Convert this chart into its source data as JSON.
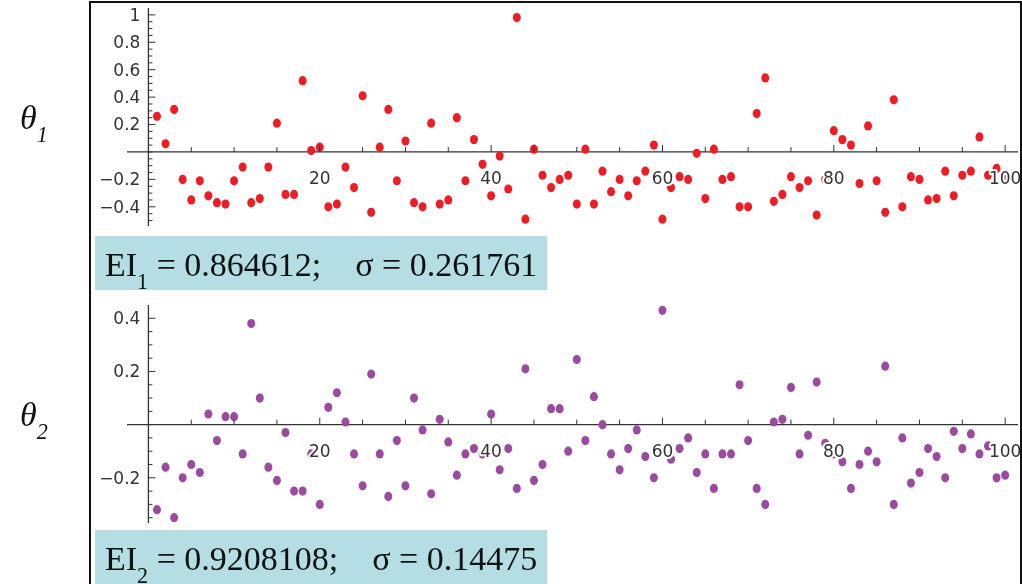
{
  "chart_data": [
    {
      "type": "scatter",
      "ylabel": "θ$_{1}$",
      "annotations": [
        "EI$_{1}$ = 0.864612;    σ = 0.261761"
      ],
      "marker": "circle",
      "grid": false,
      "xlim": [
        -2.5,
        101.5
      ],
      "ylim": [
        -0.54,
        1.05
      ],
      "xticks": [
        {
          "value": 5,
          "label": null
        },
        {
          "value": 10,
          "label": null
        },
        {
          "value": 15,
          "label": null
        },
        20,
        {
          "value": 25,
          "label": null
        },
        {
          "value": 30,
          "label": null
        },
        {
          "value": 35,
          "label": null
        },
        40,
        {
          "value": 45,
          "label": null
        },
        {
          "value": 50,
          "label": null
        },
        {
          "value": 55,
          "label": null
        },
        60,
        {
          "value": 65,
          "label": null
        },
        {
          "value": 70,
          "label": null
        },
        {
          "value": 75,
          "label": null
        },
        80,
        {
          "value": 85,
          "label": null
        },
        {
          "value": 90,
          "label": null
        },
        {
          "value": 95,
          "label": null
        },
        100
      ],
      "yticks": [
        {
          "value": -0.5,
          "label": null
        },
        {
          "value": -0.45,
          "label": null
        },
        -0.4,
        {
          "value": -0.35,
          "label": null
        },
        {
          "value": -0.3,
          "label": null
        },
        {
          "value": -0.25,
          "label": null
        },
        -0.2,
        {
          "value": -0.15,
          "label": null
        },
        {
          "value": -0.1,
          "label": null
        },
        {
          "value": -0.05,
          "label": null
        },
        {
          "value": 0,
          "label": null
        },
        {
          "value": 0.05,
          "label": null
        },
        {
          "value": 0.1,
          "label": null
        },
        {
          "value": 0.15,
          "label": null
        },
        0.2,
        {
          "value": 0.25,
          "label": null
        },
        {
          "value": 0.3,
          "label": null
        },
        {
          "value": 0.35,
          "label": null
        },
        0.4,
        {
          "value": 0.45,
          "label": null
        },
        {
          "value": 0.5,
          "label": null
        },
        {
          "value": 0.55,
          "label": null
        },
        0.6,
        {
          "value": 0.65,
          "label": null
        },
        {
          "value": 0.7,
          "label": null
        },
        {
          "value": 0.75,
          "label": null
        },
        0.8,
        {
          "value": 0.85,
          "label": null
        },
        {
          "value": 0.9,
          "label": null
        },
        {
          "value": 0.95,
          "label": null
        },
        1
      ],
      "series": [
        {
          "color": "#ee1c25",
          "x": [
            1,
            2,
            3,
            4,
            5,
            6,
            7,
            8,
            9,
            10,
            11,
            12,
            13,
            14,
            15,
            16,
            17,
            18,
            19,
            20,
            21,
            22,
            23,
            24,
            25,
            26,
            27,
            28,
            29,
            30,
            31,
            32,
            33,
            34,
            35,
            36,
            37,
            38,
            39,
            40,
            41,
            42,
            43,
            44,
            45,
            46,
            47,
            48,
            49,
            50,
            51,
            52,
            53,
            54,
            55,
            56,
            57,
            58,
            59,
            60,
            61,
            62,
            63,
            64,
            65,
            66,
            67,
            68,
            69,
            70,
            71,
            72,
            73,
            74,
            75,
            76,
            77,
            78,
            79,
            80,
            81,
            82,
            83,
            84,
            85,
            86,
            87,
            88,
            89,
            90,
            91,
            92,
            93,
            94,
            95,
            96,
            97,
            98,
            99,
            100
          ],
          "values": [
            0.26,
            0.06,
            0.31,
            -0.2,
            -0.35,
            -0.21,
            -0.32,
            -0.37,
            -0.38,
            -0.21,
            -0.11,
            -0.37,
            -0.34,
            -0.11,
            0.21,
            -0.31,
            -0.31,
            0.52,
            0.01,
            0.035,
            -0.4,
            -0.38,
            -0.11,
            -0.26,
            0.41,
            -0.44,
            0.035,
            0.31,
            -0.21,
            0.08,
            -0.37,
            -0.4,
            0.21,
            -0.38,
            -0.35,
            0.25,
            -0.21,
            0.09,
            -0.09,
            -0.32,
            -0.03,
            -0.27,
            0.98,
            -0.49,
            0.02,
            -0.17,
            -0.26,
            -0.2,
            -0.17,
            -0.38,
            0.02,
            -0.38,
            -0.14,
            -0.29,
            -0.2,
            -0.32,
            -0.21,
            -0.14,
            0.05,
            -0.49,
            -0.26,
            -0.18,
            -0.2,
            -0.01,
            -0.34,
            0.02,
            -0.2,
            -0.18,
            -0.4,
            -0.4,
            0.28,
            0.54,
            -0.36,
            -0.31,
            -0.18,
            -0.26,
            -0.21,
            -0.46,
            -0.2,
            0.155,
            0.09,
            0.05,
            -0.23,
            0.19,
            -0.21,
            -0.44,
            0.38,
            -0.4,
            -0.18,
            -0.2,
            -0.35,
            -0.34,
            -0.14,
            -0.32,
            -0.17,
            -0.14,
            0.11,
            -0.17,
            -0.12,
            -0.18
          ]
        }
      ]
    },
    {
      "type": "scatter",
      "ylabel": "θ$_{2}$",
      "annotations": [
        "EI$_{2}$ = 0.9208108;    σ = 0.14475"
      ],
      "marker": "circle",
      "grid": false,
      "xlim": [
        -2.5,
        101.5
      ],
      "ylim": [
        -0.37,
        0.45
      ],
      "xticks": [
        {
          "value": 5,
          "label": null
        },
        {
          "value": 10,
          "label": null
        },
        {
          "value": 15,
          "label": null
        },
        20,
        {
          "value": 25,
          "label": null
        },
        {
          "value": 30,
          "label": null
        },
        {
          "value": 35,
          "label": null
        },
        40,
        {
          "value": 45,
          "label": null
        },
        {
          "value": 50,
          "label": null
        },
        {
          "value": 55,
          "label": null
        },
        60,
        {
          "value": 65,
          "label": null
        },
        {
          "value": 70,
          "label": null
        },
        {
          "value": 75,
          "label": null
        },
        80,
        {
          "value": 85,
          "label": null
        },
        {
          "value": 90,
          "label": null
        },
        {
          "value": 95,
          "label": null
        },
        100
      ],
      "yticks": [
        {
          "value": -0.35,
          "label": null
        },
        {
          "value": -0.3,
          "label": null
        },
        {
          "value": -0.25,
          "label": null
        },
        -0.2,
        {
          "value": -0.15,
          "label": null
        },
        {
          "value": -0.1,
          "label": null
        },
        {
          "value": -0.05,
          "label": null
        },
        {
          "value": 0,
          "label": null
        },
        {
          "value": 0.05,
          "label": null
        },
        {
          "value": 0.1,
          "label": null
        },
        {
          "value": 0.15,
          "label": null
        },
        0.2,
        {
          "value": 0.25,
          "label": null
        },
        {
          "value": 0.3,
          "label": null
        },
        {
          "value": 0.35,
          "label": null
        },
        0.4
      ],
      "series": [
        {
          "color": "#9b4a9f",
          "x": [
            1,
            2,
            3,
            4,
            5,
            6,
            7,
            8,
            9,
            10,
            11,
            12,
            13,
            14,
            15,
            16,
            17,
            18,
            19,
            20,
            21,
            22,
            23,
            24,
            25,
            26,
            27,
            28,
            29,
            30,
            31,
            32,
            33,
            34,
            35,
            36,
            37,
            38,
            39,
            40,
            41,
            42,
            43,
            44,
            45,
            46,
            47,
            48,
            49,
            50,
            51,
            52,
            53,
            54,
            55,
            56,
            57,
            58,
            59,
            60,
            61,
            62,
            63,
            64,
            65,
            66,
            67,
            68,
            69,
            70,
            71,
            72,
            73,
            74,
            75,
            76,
            77,
            78,
            79,
            80,
            81,
            82,
            83,
            84,
            85,
            86,
            87,
            88,
            89,
            90,
            91,
            92,
            93,
            94,
            95,
            96,
            97,
            98,
            99,
            100
          ],
          "values": [
            -0.32,
            -0.16,
            -0.35,
            -0.2,
            -0.15,
            -0.18,
            0.04,
            -0.06,
            0.03,
            0.03,
            -0.11,
            0.38,
            0.1,
            -0.16,
            -0.21,
            -0.03,
            -0.25,
            -0.25,
            -0.11,
            -0.3,
            0.065,
            0.12,
            0.01,
            -0.11,
            -0.23,
            0.19,
            -0.11,
            -0.27,
            -0.06,
            -0.23,
            0.1,
            -0.02,
            -0.26,
            0.02,
            -0.065,
            -0.19,
            -0.11,
            -0.09,
            -0.11,
            0.04,
            -0.17,
            -0.09,
            -0.24,
            0.21,
            -0.21,
            -0.15,
            0.06,
            0.06,
            -0.1,
            0.245,
            -0.06,
            0.105,
            0,
            -0.11,
            -0.17,
            -0.09,
            -0.02,
            -0.12,
            -0.2,
            0.43,
            -0.13,
            -0.09,
            -0.05,
            -0.18,
            -0.11,
            -0.24,
            -0.11,
            -0.11,
            0.15,
            -0.06,
            -0.24,
            -0.3,
            0.01,
            0.02,
            0.14,
            -0.11,
            -0.04,
            0.16,
            -0.07,
            -0.11,
            -0.14,
            -0.24,
            -0.15,
            -0.1,
            -0.14,
            0.22,
            -0.3,
            -0.05,
            -0.22,
            -0.18,
            -0.09,
            -0.12,
            -0.2,
            -0.025,
            -0.09,
            -0.035,
            -0.11,
            -0.08,
            -0.2,
            -0.19
          ]
        }
      ]
    }
  ]
}
